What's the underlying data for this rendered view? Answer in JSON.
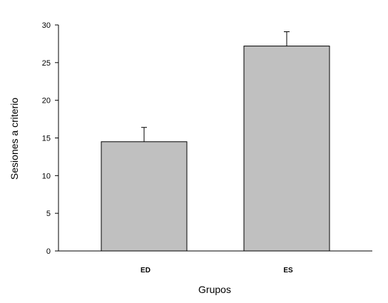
{
  "chart_data": {
    "type": "bar",
    "title": "",
    "xlabel": "Grupos",
    "ylabel": "Sesiones a criterio",
    "categories": [
      "ED",
      "ES"
    ],
    "values": [
      14.5,
      27.2
    ],
    "error_plus": [
      1.9,
      1.9
    ],
    "ylim": [
      0,
      30
    ],
    "yticks": [
      0,
      5,
      10,
      15,
      20,
      25,
      30
    ],
    "ytick_labels": [
      "0",
      "5",
      "10",
      "15",
      "20",
      "25",
      "30"
    ],
    "grid": false,
    "legend": "none",
    "bar_color": "#c0c0c0",
    "bar_edge_color": "#000000"
  }
}
